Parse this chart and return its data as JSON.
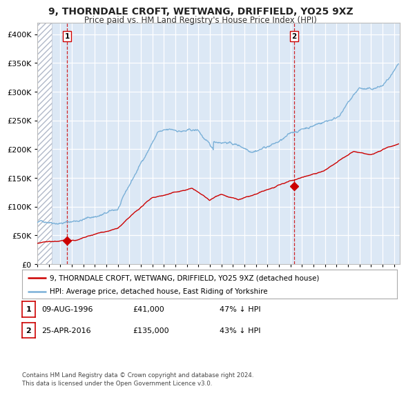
{
  "title": "9, THORNDALE CROFT, WETWANG, DRIFFIELD, YO25 9XZ",
  "subtitle": "Price paid vs. HM Land Registry's House Price Index (HPI)",
  "legend_red": "9, THORNDALE CROFT, WETWANG, DRIFFIELD, YO25 9XZ (detached house)",
  "legend_blue": "HPI: Average price, detached house, East Riding of Yorkshire",
  "sale1_date": "09-AUG-1996",
  "sale1_price": "£41,000",
  "sale1_hpi": "47% ↓ HPI",
  "sale2_date": "25-APR-2016",
  "sale2_price": "£135,000",
  "sale2_hpi": "43% ↓ HPI",
  "footer": "Contains HM Land Registry data © Crown copyright and database right 2024.\nThis data is licensed under the Open Government Licence v3.0.",
  "plot_bg": "#dce8f5",
  "hatch_color": "#b0b8c8",
  "red_color": "#cc0000",
  "blue_color": "#7ab0d8",
  "sale1_x": 1996.6,
  "sale1_y": 41000,
  "sale2_x": 2016.33,
  "sale2_y": 135000,
  "ylim": [
    0,
    420000
  ],
  "xlim_start": 1994.0,
  "xlim_end": 2025.5,
  "hatch_end": 1995.25
}
